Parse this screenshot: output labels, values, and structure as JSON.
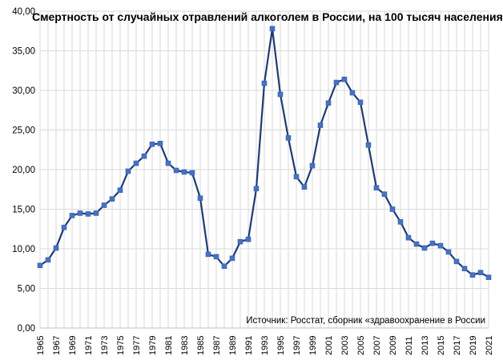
{
  "chart_data": {
    "type": "line",
    "title": "Смертность от случайных отравлений алкоголем в России, на 100 тысяч населения",
    "source": "Источник: Росстат, сборник «здравоохранение в России",
    "xlabel": "",
    "ylabel": "",
    "ylim": [
      0,
      40
    ],
    "yticks": [
      "0,00",
      "5,00",
      "10,00",
      "15,00",
      "20,00",
      "25,00",
      "30,00",
      "35,00",
      "40,00"
    ],
    "xtick_labels": [
      "1965",
      "1967",
      "1969",
      "1971",
      "1973",
      "1975",
      "1977",
      "1979",
      "1981",
      "1983",
      "1985",
      "1987",
      "1989",
      "1991",
      "1993",
      "1995",
      "1997",
      "1999",
      "2001",
      "2003",
      "2005",
      "2007",
      "2009",
      "2011",
      "2013",
      "2015",
      "2017",
      "2019",
      "2021"
    ],
    "grid": true,
    "legend": "none",
    "x": [
      1965,
      1966,
      1967,
      1968,
      1969,
      1970,
      1971,
      1972,
      1973,
      1974,
      1975,
      1976,
      1977,
      1978,
      1979,
      1980,
      1981,
      1982,
      1983,
      1984,
      1985,
      1986,
      1987,
      1988,
      1989,
      1990,
      1991,
      1992,
      1993,
      1994,
      1995,
      1996,
      1997,
      1998,
      1999,
      2000,
      2001,
      2002,
      2003,
      2004,
      2005,
      2006,
      2007,
      2008,
      2009,
      2010,
      2011,
      2012,
      2013,
      2014,
      2015,
      2016,
      2017,
      2018,
      2019,
      2020,
      2021
    ],
    "values": [
      7.9,
      8.6,
      10.1,
      12.7,
      14.2,
      14.5,
      14.4,
      14.5,
      15.5,
      16.3,
      17.4,
      19.8,
      20.8,
      21.7,
      23.2,
      23.3,
      20.8,
      19.9,
      19.7,
      19.6,
      16.4,
      9.3,
      9.0,
      7.8,
      8.8,
      10.9,
      11.2,
      17.6,
      30.9,
      37.8,
      29.5,
      24.0,
      19.1,
      17.8,
      20.5,
      25.6,
      28.4,
      31.0,
      31.4,
      29.7,
      28.5,
      23.1,
      17.7,
      16.9,
      15.0,
      13.4,
      11.4,
      10.6,
      10.1,
      10.7,
      10.4,
      9.6,
      8.4,
      7.5,
      6.7,
      7.0,
      6.4
    ],
    "line_color": "#1f3b73",
    "marker_color": "#4472c4",
    "grid_color": "#d9d9d9"
  }
}
